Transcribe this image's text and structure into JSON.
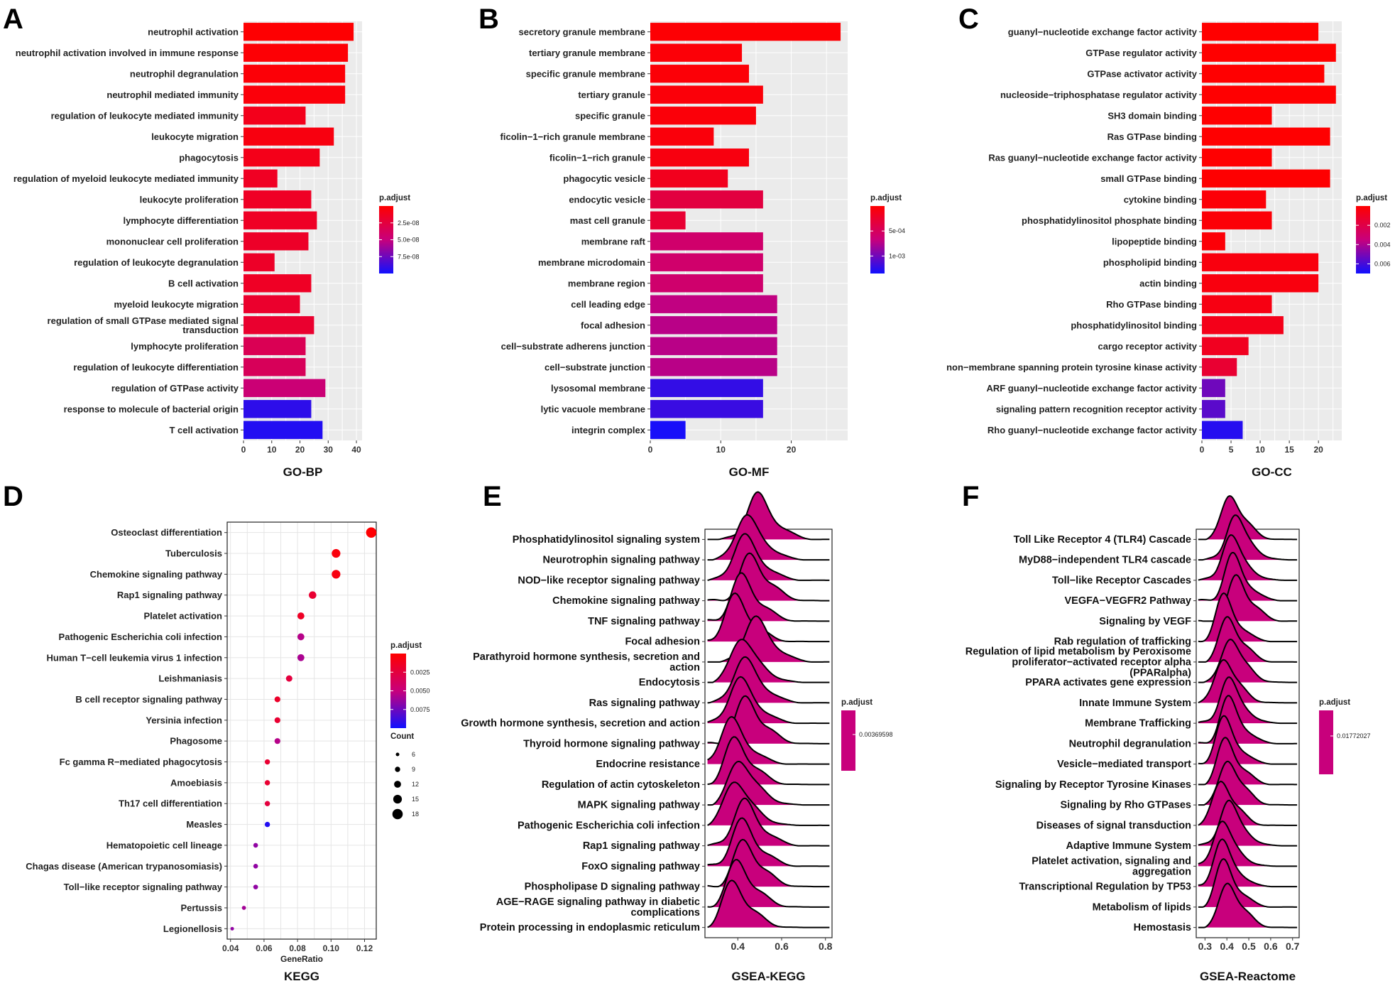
{
  "colors": {
    "high": "#ff0000",
    "mid": "#c8007c",
    "low": "#1010ff",
    "panel_bg": "#ebebeb",
    "grid": "#ffffff"
  },
  "chart_data": [
    {
      "id": "A",
      "type": "bar",
      "orientation": "horizontal",
      "title": "GO-BP",
      "xlim": [
        0,
        42
      ],
      "xticks": [
        0,
        10,
        20,
        30,
        40
      ],
      "categories": [
        "neutrophil activation",
        "neutrophil activation involved in immune response",
        "neutrophil degranulation",
        "neutrophil mediated immunity",
        "regulation of leukocyte mediated immunity",
        "leukocyte migration",
        "phagocytosis",
        "regulation of myeloid leukocyte mediated immunity",
        "leukocyte proliferation",
        "lymphocyte differentiation",
        "mononuclear cell proliferation",
        "regulation of leukocyte degranulation",
        "B cell activation",
        "myeloid leukocyte migration",
        "regulation of small GTPase mediated signal transduction",
        "lymphocyte proliferation",
        "regulation of leukocyte differentiation",
        "regulation of GTPase activity",
        "response to molecule of bacterial origin",
        "T cell activation"
      ],
      "values": [
        39,
        37,
        36,
        36,
        22,
        32,
        27,
        12,
        24,
        26,
        23,
        11,
        24,
        20,
        25,
        22,
        22,
        29,
        24,
        28
      ],
      "p_adjust": [
        1e-09,
        2e-09,
        3e-09,
        4e-09,
        1.1e-08,
        6e-09,
        1e-08,
        1.4e-08,
        1.5e-08,
        1.5e-08,
        1.6e-08,
        1.6e-08,
        1.5e-08,
        1.8e-08,
        1.9e-08,
        3.4e-08,
        3.6e-08,
        4.7e-08,
        9.2e-08,
        9.5e-08
      ],
      "legend": {
        "title": "p.adjust",
        "labels": [
          "2.5e-08",
          "5.0e-08",
          "7.5e-08"
        ],
        "min": 0,
        "max": 1e-07
      }
    },
    {
      "id": "B",
      "type": "bar",
      "orientation": "horizontal",
      "title": "GO-MF",
      "xlim": [
        0,
        28
      ],
      "xticks": [
        0,
        10,
        20
      ],
      "categories": [
        "secretory granule membrane",
        "tertiary granule membrane",
        "specific granule membrane",
        "tertiary granule",
        "specific granule",
        "ficolin−1−rich granule membrane",
        "ficolin−1−rich granule",
        "phagocytic vesicle",
        "endocytic vesicle",
        "mast cell granule",
        "membrane raft",
        "membrane microdomain",
        "membrane region",
        "cell leading edge",
        "focal adhesion",
        "cell−substrate adherens junction",
        "cell−substrate junction",
        "lysosomal membrane",
        "lytic vacuole membrane",
        "integrin complex"
      ],
      "values": [
        27,
        13,
        14,
        16,
        15,
        9,
        14,
        11,
        16,
        5,
        16,
        16,
        16,
        18,
        18,
        18,
        18,
        16,
        16,
        5
      ],
      "p_adjust": [
        2e-05,
        4e-05,
        4e-05,
        5e-05,
        5e-05,
        6e-05,
        8e-05,
        0.00016,
        0.00035,
        0.00028,
        0.00058,
        0.00058,
        0.00059,
        0.0007,
        0.00073,
        0.00073,
        0.00073,
        0.00122,
        0.0012,
        0.00132
      ],
      "legend": {
        "title": "p.adjust",
        "labels": [
          "5e-04",
          "1e-03"
        ],
        "min": 0,
        "max": 0.00135
      }
    },
    {
      "id": "C",
      "type": "bar",
      "orientation": "horizontal",
      "title": "GO-CC",
      "xlim": [
        0,
        24
      ],
      "xticks": [
        0,
        5,
        10,
        15,
        20
      ],
      "categories": [
        "guanyl−nucleotide exchange factor activity",
        "GTPase regulator activity",
        "GTPase activator activity",
        "nucleoside−triphosphatase regulator activity",
        "SH3 domain binding",
        "Ras GTPase binding",
        "Ras guanyl−nucleotide exchange factor activity",
        "small GTPase binding",
        "cytokine binding",
        "phosphatidylinositol phosphate binding",
        "lipopeptide binding",
        "phospholipid binding",
        "actin binding",
        "Rho GTPase binding",
        "phosphatidylinositol binding",
        "cargo receptor activity",
        "non−membrane spanning protein tyrosine kinase activity",
        "ARF guanyl−nucleotide exchange factor activity",
        "signaling pattern recognition receptor activity",
        "Rho guanyl−nucleotide exchange factor activity"
      ],
      "values": [
        20,
        23,
        21,
        23,
        12,
        22,
        12,
        22,
        11,
        12,
        4,
        20,
        20,
        12,
        14,
        8,
        6,
        4,
        4,
        7
      ],
      "p_adjust": [
        1e-05,
        1e-05,
        2e-05,
        2e-05,
        2e-05,
        3e-05,
        3e-05,
        4e-05,
        0.0002,
        0.0002,
        0.0002,
        0.0004,
        0.0004,
        0.0005,
        0.0007,
        0.0009,
        0.0014,
        0.0052,
        0.0056,
        0.0066
      ],
      "legend": {
        "title": "p.adjust",
        "labels": [
          "0.002",
          "0.004",
          "0.006"
        ],
        "min": 0,
        "max": 0.007
      }
    },
    {
      "id": "D",
      "type": "scatter",
      "title": "KEGG",
      "xlabel": "GeneRatio",
      "xlim": [
        0.038,
        0.127
      ],
      "xticks": [
        0.04,
        0.06,
        0.08,
        0.1,
        0.12
      ],
      "xtick_labels": [
        "0.04",
        "0.06",
        "0.08",
        "0.10",
        "0.12"
      ],
      "categories": [
        "Osteoclast differentiation",
        "Tuberculosis",
        "Chemokine signaling pathway",
        "Rap1 signaling pathway",
        "Platelet activation",
        "Pathogenic Escherichia coli infection",
        "Human T−cell leukemia virus 1 infection",
        "Leishmaniasis",
        "B cell receptor signaling pathway",
        "Yersinia infection",
        "Phagosome",
        "Fc gamma R−mediated phagocytosis",
        "Amoebiasis",
        "Th17 cell differentiation",
        "Measles",
        "Hematopoietic cell lineage",
        "Chagas disease (American trypanosomiasis)",
        "Toll−like receptor signaling pathway",
        "Pertussis",
        "Legionellosis"
      ],
      "x": [
        0.124,
        0.103,
        0.103,
        0.089,
        0.082,
        0.082,
        0.082,
        0.075,
        0.068,
        0.068,
        0.068,
        0.062,
        0.062,
        0.062,
        0.062,
        0.055,
        0.055,
        0.055,
        0.048,
        0.041
      ],
      "count": [
        18,
        15,
        15,
        13,
        12,
        12,
        12,
        11,
        10,
        10,
        10,
        9,
        9,
        9,
        9,
        8,
        8,
        8,
        7,
        6
      ],
      "p_adjust": [
        0.0001,
        0.0005,
        0.0006,
        0.002,
        0.0015,
        0.0055,
        0.0058,
        0.0025,
        0.0017,
        0.002,
        0.0055,
        0.002,
        0.002,
        0.0025,
        0.0095,
        0.0065,
        0.0065,
        0.0065,
        0.006,
        0.0065
      ],
      "legend": {
        "title": "p.adjust",
        "labels": [
          "0.0025",
          "0.0050",
          "0.0075"
        ],
        "min": 0,
        "max": 0.01,
        "size_title": "Count",
        "size_labels": [
          "6",
          "9",
          "12",
          "15",
          "18"
        ],
        "size_values": [
          6,
          9,
          12,
          15,
          18
        ]
      }
    },
    {
      "id": "E",
      "type": "ridgeline",
      "title": "GSEA-KEGG",
      "xlim": [
        0.25,
        0.83
      ],
      "xticks": [
        0.4,
        0.6,
        0.8
      ],
      "xtick_labels": [
        "0.4",
        "0.6",
        "0.8"
      ],
      "categories": [
        "Phosphatidylinositol signaling system",
        "Neurotrophin signaling pathway",
        "NOD−like receptor signaling pathway",
        "Chemokine signaling pathway",
        "TNF signaling pathway",
        "Focal adhesion",
        "Parathyroid hormone synthesis, secretion and action",
        "Endocytosis",
        "Ras signaling pathway",
        "Growth hormone synthesis, secretion and action",
        "Thyroid hormone signaling pathway",
        "Endocrine resistance",
        "Regulation of actin cytoskeleton",
        "MAPK signaling pathway",
        "Pathogenic Escherichia coli infection",
        "Rap1 signaling pathway",
        "FoxO signaling pathway",
        "Phospholipase D signaling pathway",
        "AGE−RAGE signaling pathway in diabetic complications",
        "Protein processing in endoplasmic reticulum"
      ],
      "peaks": [
        0.48,
        0.43,
        0.42,
        0.45,
        0.41,
        0.38,
        0.47,
        0.41,
        0.42,
        0.4,
        0.43,
        0.36,
        0.38,
        0.4,
        0.38,
        0.42,
        0.41,
        0.42,
        0.39,
        0.37
      ],
      "legend": {
        "title": "p.adjust",
        "labels": [
          "0.00369598"
        ]
      }
    },
    {
      "id": "F",
      "type": "ridgeline",
      "title": "GSEA-Reactome",
      "xlim": [
        0.26,
        0.73
      ],
      "xticks": [
        0.3,
        0.4,
        0.5,
        0.6,
        0.7
      ],
      "xtick_labels": [
        "0.3",
        "0.4",
        "0.5",
        "0.6",
        "0.7"
      ],
      "categories": [
        "Toll Like Receptor 4 (TLR4) Cascade",
        "MyD88−independent TLR4 cascade",
        "Toll−like Receptor Cascades",
        "VEGFA−VEGFR2 Pathway",
        "Signaling by VEGF",
        "Rab regulation of trafficking",
        "Regulation of lipid metabolism by Peroxisome proliferator−activated receptor alpha (PPARalpha)",
        "PPARA activates gene expression",
        "Innate Immune System",
        "Membrane Trafficking",
        "Neutrophil degranulation",
        "Vesicle−mediated transport",
        "Signaling by Receptor Tyrosine Kinases",
        "Signaling by Rho GTPases",
        "Diseases of signal transduction",
        "Adaptive Immune System",
        "Platelet activation, signaling and aggregation",
        "Transcriptional Regulation by TP53",
        "Metabolism of lipids",
        "Hemostasis"
      ],
      "peaks": [
        0.41,
        0.43,
        0.41,
        0.42,
        0.44,
        0.38,
        0.4,
        0.41,
        0.38,
        0.4,
        0.4,
        0.38,
        0.39,
        0.4,
        0.37,
        0.4,
        0.37,
        0.37,
        0.38,
        0.4
      ],
      "legend": {
        "title": "p.adjust",
        "labels": [
          "0.01772027"
        ]
      }
    }
  ]
}
